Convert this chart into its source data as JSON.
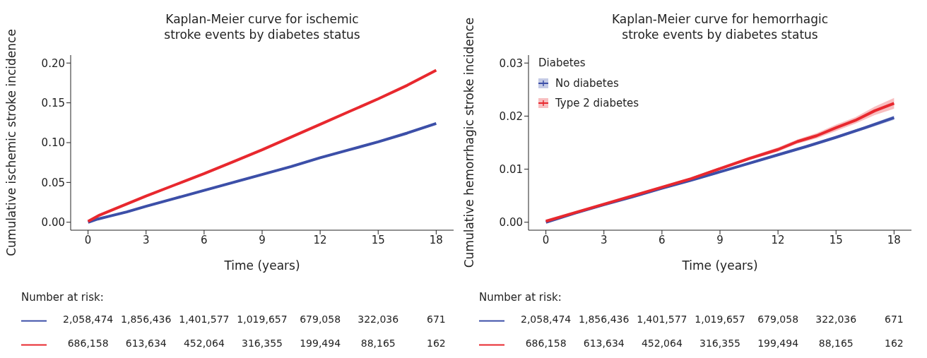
{
  "chart_data": [
    {
      "type": "line",
      "title": "Kaplan-Meier curve for ischemic\nstroke events by diabetes status",
      "xlabel": "Time (years)",
      "ylabel": "Cumulative ischemic stroke incidence",
      "xlim": [
        -0.9,
        18.9
      ],
      "xticks": [
        0,
        3,
        6,
        9,
        12,
        15,
        18
      ],
      "ylim": [
        -0.01,
        0.21
      ],
      "yticks": [
        {
          "value": 0,
          "label": "0.00"
        },
        {
          "value": 0.05,
          "label": "0.05"
        },
        {
          "value": 0.1,
          "label": "0.10"
        },
        {
          "value": 0.15,
          "label": "0.15"
        },
        {
          "value": 0.2,
          "label": "0.20"
        }
      ],
      "series": [
        {
          "color": "#3c4fa8",
          "x": [
            0,
            0.5,
            1,
            2,
            3,
            4.5,
            6,
            7.5,
            9,
            10.5,
            12,
            13.5,
            15,
            16.5,
            18
          ],
          "values": [
            0,
            0.004,
            0.007,
            0.013,
            0.02,
            0.03,
            0.04,
            0.05,
            0.06,
            0.07,
            0.081,
            0.091,
            0.101,
            0.112,
            0.124
          ]
        },
        {
          "color": "#e8282e",
          "x": [
            0,
            0.3,
            0.6,
            1,
            2,
            3,
            4.5,
            6,
            7.5,
            9,
            10.5,
            12,
            13.5,
            15,
            16.5,
            18
          ],
          "values": [
            0.001,
            0.005,
            0.009,
            0.013,
            0.023,
            0.033,
            0.047,
            0.061,
            0.076,
            0.091,
            0.107,
            0.123,
            0.139,
            0.155,
            0.172,
            0.191
          ]
        }
      ],
      "annotations": [
        "Number at risk:",
        "2,058,474",
        "1,856,436",
        "1,401,577",
        "1,019,657",
        "679,058",
        "322,036",
        "671",
        "686,158",
        "613,634",
        "452,064",
        "316,355",
        "199,494",
        "88,165",
        "162"
      ]
    },
    {
      "type": "line",
      "title": "Kaplan-Meier curve for hemorrhagic\nstroke events by diabetes status",
      "xlabel": "Time (years)",
      "ylabel": "Cumulative hemorrhagic stroke incidence",
      "xlim": [
        -0.9,
        18.9
      ],
      "xticks": [
        0,
        3,
        6,
        9,
        12,
        15,
        18
      ],
      "ylim": [
        -0.0015,
        0.0315
      ],
      "yticks": [
        {
          "value": 0,
          "label": "0.00"
        },
        {
          "value": 0.01,
          "label": "0.01"
        },
        {
          "value": 0.02,
          "label": "0.02"
        },
        {
          "value": 0.03,
          "label": "0.03"
        }
      ],
      "legend": "top left",
      "legend_title": "Diabetes",
      "series": [
        {
          "name": "No diabetes",
          "color": "#3c4fa8",
          "x": [
            0,
            1.5,
            3,
            4.5,
            6,
            7.5,
            9,
            10.5,
            12,
            13.5,
            15,
            16.5,
            18
          ],
          "values": [
            0,
            0.0017,
            0.0033,
            0.0048,
            0.0064,
            0.0079,
            0.0095,
            0.0111,
            0.0127,
            0.0143,
            0.016,
            0.0178,
            0.0197
          ],
          "lower": [
            0,
            0.0016,
            0.0032,
            0.0047,
            0.0063,
            0.0078,
            0.0094,
            0.011,
            0.0126,
            0.0141,
            0.0158,
            0.0175,
            0.0193
          ],
          "upper": [
            0,
            0.0018,
            0.0034,
            0.0049,
            0.0065,
            0.008,
            0.0096,
            0.0112,
            0.0128,
            0.0145,
            0.0162,
            0.0181,
            0.0201
          ]
        },
        {
          "name": "Type 2 diabetes",
          "color": "#e8282e",
          "x": [
            0,
            1.5,
            3,
            4.5,
            6,
            7.5,
            9,
            10.5,
            12,
            13,
            14,
            15,
            16,
            17,
            18
          ],
          "values": [
            0.0002,
            0.0018,
            0.0034,
            0.005,
            0.0066,
            0.0082,
            0.0101,
            0.012,
            0.0137,
            0.0152,
            0.0163,
            0.0178,
            0.0192,
            0.021,
            0.0224
          ],
          "lower": [
            0.0001,
            0.0017,
            0.0033,
            0.0048,
            0.0064,
            0.008,
            0.0098,
            0.0117,
            0.0133,
            0.0148,
            0.0158,
            0.0172,
            0.0186,
            0.0202,
            0.0214
          ],
          "upper": [
            0.0003,
            0.0019,
            0.0035,
            0.0052,
            0.0068,
            0.0084,
            0.0104,
            0.0123,
            0.0141,
            0.0156,
            0.0168,
            0.0184,
            0.0198,
            0.0218,
            0.0234
          ]
        }
      ],
      "annotations": [
        "Number at risk:",
        "2,058,474",
        "1,856,436",
        "1,401,577",
        "1,019,657",
        "679,058",
        "322,036",
        "671",
        "686,158",
        "613,634",
        "452,064",
        "316,355",
        "199,494",
        "88,165",
        "162"
      ]
    }
  ]
}
